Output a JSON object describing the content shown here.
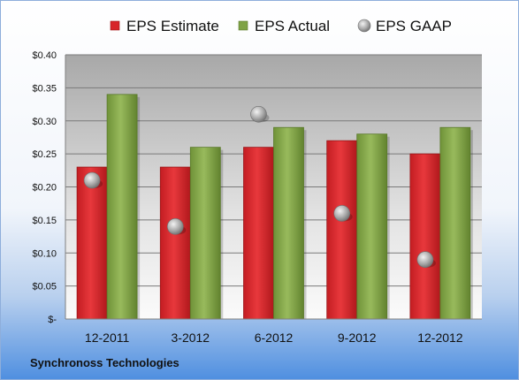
{
  "chart_data": {
    "type": "bar",
    "categories": [
      "12-2011",
      "3-2012",
      "6-2012",
      "9-2012",
      "12-2012"
    ],
    "series": [
      {
        "name": "EPS Estimate",
        "kind": "bar",
        "color": "#d7252a",
        "values": [
          0.23,
          0.23,
          0.26,
          0.27,
          0.25
        ]
      },
      {
        "name": "EPS Actual",
        "kind": "bar",
        "color": "#7fa346",
        "values": [
          0.34,
          0.26,
          0.29,
          0.28,
          0.29
        ]
      },
      {
        "name": "EPS GAAP",
        "kind": "marker",
        "color": "#a9a9a9",
        "values": [
          0.21,
          0.14,
          0.31,
          0.16,
          0.09
        ]
      }
    ],
    "y_ticks": [
      "$-",
      "$0.05",
      "$0.10",
      "$0.15",
      "$0.20",
      "$0.25",
      "$0.30",
      "$0.35",
      "$0.40"
    ],
    "ylim": [
      0,
      0.4
    ],
    "grid": true,
    "legend_position": "top"
  },
  "footer": {
    "company": "Synchronoss Technologies"
  }
}
